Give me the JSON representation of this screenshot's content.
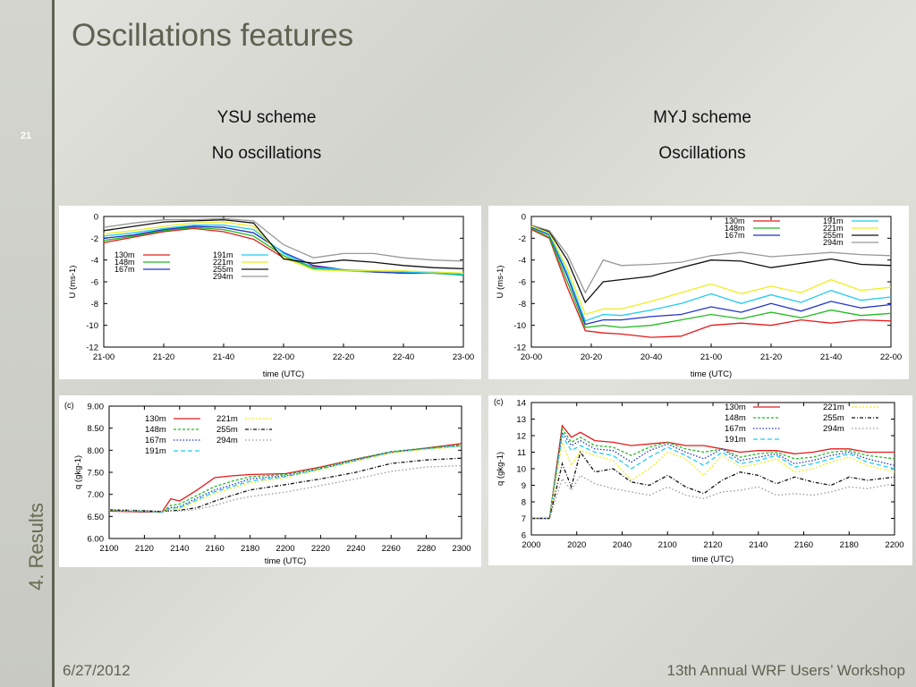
{
  "slide": {
    "title": "Oscillations features",
    "number": "21",
    "section": "4. Results",
    "date": "6/27/2012",
    "footer": "13th Annual WRF Users’ Workshop"
  },
  "columns": {
    "left": {
      "scheme": "YSU scheme",
      "note": "No oscillations"
    },
    "right": {
      "scheme": "MYJ scheme",
      "note": "Oscillations"
    }
  },
  "colors": {
    "130m": "#e41a1c",
    "148m": "#22bb22",
    "167m": "#2233cc",
    "191m": "#22ccee",
    "221m": "#eeee22",
    "255m": "#111111",
    "294m": "#999999"
  },
  "chart_data": [
    {
      "type": "line",
      "id": "ysu-u",
      "ylabel": "U (ms-1)",
      "xlabel": "time (UTC)",
      "xticks": [
        "21-00",
        "21-20",
        "21-40",
        "22-00",
        "22-20",
        "22-40",
        "23-00"
      ],
      "ylim": [
        -12,
        0
      ],
      "yticks": [
        0,
        -2,
        -4,
        -6,
        -8,
        -10,
        -12
      ],
      "x": [
        0,
        10,
        20,
        30,
        40,
        50,
        60,
        70,
        80,
        90,
        100,
        110,
        120
      ],
      "series": [
        {
          "name": "130m",
          "values": [
            -2.4,
            -1.9,
            -1.4,
            -1.1,
            -1.4,
            -2.1,
            -3.8,
            -4.6,
            -4.9,
            -5.1,
            -5.2,
            -5.2,
            -5.3
          ]
        },
        {
          "name": "148m",
          "values": [
            -2.2,
            -1.8,
            -1.3,
            -1.0,
            -1.2,
            -1.8,
            -3.6,
            -4.8,
            -5.0,
            -5.1,
            -5.2,
            -5.2,
            -5.4
          ]
        },
        {
          "name": "167m",
          "values": [
            -2.0,
            -1.7,
            -1.2,
            -0.9,
            -1.0,
            -1.5,
            -3.3,
            -4.5,
            -4.9,
            -5.1,
            -5.2,
            -5.2,
            -5.3
          ]
        },
        {
          "name": "191m",
          "values": [
            -1.8,
            -1.5,
            -1.1,
            -0.8,
            -0.8,
            -1.2,
            -3.4,
            -4.7,
            -4.9,
            -5.0,
            -5.1,
            -5.2,
            -5.3
          ]
        },
        {
          "name": "221m",
          "values": [
            -1.6,
            -1.3,
            -0.9,
            -0.6,
            -0.5,
            -0.9,
            -3.8,
            -4.9,
            -5.0,
            -5.0,
            -5.0,
            -5.1,
            -5.2
          ]
        },
        {
          "name": "255m",
          "values": [
            -1.3,
            -0.9,
            -0.5,
            -0.4,
            -0.3,
            -0.6,
            -3.9,
            -4.3,
            -4.0,
            -4.2,
            -4.5,
            -4.7,
            -4.8
          ]
        },
        {
          "name": "294m",
          "values": [
            -1.0,
            -0.6,
            -0.3,
            -0.3,
            -0.2,
            -0.4,
            -2.6,
            -3.8,
            -3.4,
            -3.4,
            -3.8,
            -4.0,
            -4.1
          ]
        }
      ]
    },
    {
      "type": "line",
      "id": "myj-u",
      "ylabel": "U (ms-1)",
      "xlabel": "time (UTC)",
      "xticks": [
        "20-00",
        "20-20",
        "20-40",
        "21-00",
        "21-20",
        "21-40",
        "22-00"
      ],
      "ylim": [
        -12,
        0
      ],
      "yticks": [
        0,
        -2,
        -4,
        -6,
        -8,
        -10,
        -12
      ],
      "x": [
        0,
        6,
        12,
        18,
        24,
        30,
        40,
        50,
        60,
        70,
        80,
        90,
        100,
        110,
        120
      ],
      "series": [
        {
          "name": "130m",
          "values": [
            -1.2,
            -2.0,
            -6.5,
            -10.5,
            -10.7,
            -10.8,
            -11.1,
            -11.0,
            -10.0,
            -9.8,
            -10.0,
            -9.5,
            -9.8,
            -9.5,
            -9.6
          ]
        },
        {
          "name": "148m",
          "values": [
            -1.1,
            -1.9,
            -6.0,
            -10.2,
            -10.0,
            -10.2,
            -10.0,
            -9.5,
            -9.0,
            -9.4,
            -8.8,
            -9.3,
            -8.6,
            -9.1,
            -8.9
          ]
        },
        {
          "name": "167m",
          "values": [
            -1.0,
            -1.7,
            -5.5,
            -9.9,
            -9.5,
            -9.5,
            -9.2,
            -9.0,
            -8.3,
            -8.8,
            -8.0,
            -8.7,
            -7.8,
            -8.4,
            -8.1
          ]
        },
        {
          "name": "191m",
          "values": [
            -0.9,
            -1.6,
            -5.2,
            -9.6,
            -9.0,
            -9.1,
            -8.6,
            -8.0,
            -7.1,
            -8.0,
            -7.2,
            -7.9,
            -6.8,
            -7.7,
            -7.4
          ]
        },
        {
          "name": "221m",
          "values": [
            -0.9,
            -1.5,
            -4.8,
            -9.0,
            -8.5,
            -8.5,
            -7.8,
            -7.0,
            -6.2,
            -7.1,
            -6.4,
            -7.0,
            -5.8,
            -6.8,
            -6.5
          ]
        },
        {
          "name": "255m",
          "values": [
            -0.8,
            -1.4,
            -4.0,
            -7.9,
            -6.0,
            -5.8,
            -5.5,
            -4.7,
            -4.0,
            -4.1,
            -4.7,
            -4.3,
            -3.9,
            -4.4,
            -4.5
          ]
        },
        {
          "name": "294m",
          "values": [
            -0.8,
            -1.3,
            -3.5,
            -7.0,
            -4.0,
            -4.5,
            -4.4,
            -4.2,
            -3.6,
            -3.3,
            -3.7,
            -3.5,
            -3.3,
            -3.5,
            -3.6
          ]
        }
      ]
    },
    {
      "type": "line",
      "id": "ysu-q",
      "panel_label": "(c)",
      "ylabel": "q (gkg-1)",
      "xlabel": "time (UTC)",
      "xticks": [
        "2100",
        "2120",
        "2140",
        "2160",
        "2180",
        "2200",
        "2220",
        "2240",
        "2260",
        "2280",
        "2300"
      ],
      "xlim": [
        2100,
        2300
      ],
      "ylim": [
        6.0,
        9.0
      ],
      "yticks": [
        "9.00",
        "8.50",
        "8.00",
        "7.50",
        "7.00",
        "6.50",
        "6.00"
      ],
      "x": [
        2100,
        2120,
        2130,
        2135,
        2140,
        2150,
        2160,
        2170,
        2180,
        2200,
        2220,
        2240,
        2260,
        2280,
        2300
      ],
      "series": [
        {
          "name": "130m",
          "values": [
            6.62,
            6.6,
            6.6,
            6.9,
            6.85,
            7.1,
            7.38,
            7.42,
            7.45,
            7.47,
            7.62,
            7.8,
            7.95,
            8.05,
            8.15
          ]
        },
        {
          "name": "148m",
          "values": [
            6.63,
            6.61,
            6.6,
            6.75,
            6.78,
            6.98,
            7.18,
            7.3,
            7.4,
            7.45,
            7.6,
            7.8,
            7.97,
            8.05,
            8.12
          ]
        },
        {
          "name": "167m",
          "values": [
            6.63,
            6.61,
            6.6,
            6.7,
            6.72,
            6.92,
            7.1,
            7.22,
            7.35,
            7.42,
            7.58,
            7.78,
            7.96,
            8.04,
            8.1
          ]
        },
        {
          "name": "191m",
          "values": [
            6.64,
            6.62,
            6.6,
            6.68,
            6.7,
            6.88,
            7.06,
            7.18,
            7.3,
            7.4,
            7.57,
            7.76,
            7.95,
            8.03,
            8.1
          ]
        },
        {
          "name": "221m",
          "values": [
            6.64,
            6.62,
            6.61,
            6.66,
            6.68,
            6.85,
            7.02,
            7.14,
            7.26,
            7.38,
            7.56,
            7.75,
            7.94,
            8.02,
            8.08
          ]
        },
        {
          "name": "255m",
          "values": [
            6.65,
            6.63,
            6.61,
            6.63,
            6.64,
            6.7,
            6.85,
            6.98,
            7.1,
            7.22,
            7.35,
            7.5,
            7.7,
            7.78,
            7.82
          ]
        },
        {
          "name": "294m",
          "values": [
            6.65,
            6.63,
            6.62,
            6.62,
            6.62,
            6.66,
            6.75,
            6.87,
            6.95,
            7.05,
            7.2,
            7.35,
            7.52,
            7.62,
            7.65
          ]
        }
      ]
    },
    {
      "type": "line",
      "id": "myj-q",
      "panel_label": "(c)",
      "ylabel": "q (gkg-1)",
      "xlabel": "time (UTC)",
      "xticks": [
        "2000",
        "2020",
        "2040",
        "2100",
        "2120",
        "2140",
        "2160",
        "2180",
        "2200"
      ],
      "xlim": [
        2000,
        2200
      ],
      "ylim": [
        6,
        14
      ],
      "yticks": [
        14,
        13,
        12,
        11,
        10,
        9,
        8,
        7,
        6
      ],
      "x": [
        2000,
        2010,
        2017,
        2022,
        2027,
        2035,
        2045,
        2055,
        2065,
        2075,
        2085,
        2095,
        2105,
        2115,
        2125,
        2135,
        2145,
        2155,
        2165,
        2175,
        2185,
        2200
      ],
      "series": [
        {
          "name": "130m",
          "values": [
            7,
            7,
            12.6,
            11.9,
            12.2,
            11.7,
            11.6,
            11.4,
            11.5,
            11.6,
            11.4,
            11.4,
            11.2,
            11.0,
            11.1,
            11.1,
            10.9,
            11.0,
            11.2,
            11.2,
            11.0,
            11.0
          ]
        },
        {
          "name": "148m",
          "values": [
            7,
            7,
            12.4,
            11.6,
            11.9,
            11.4,
            11.3,
            10.8,
            11.3,
            11.6,
            11.2,
            11.0,
            11.2,
            10.7,
            10.9,
            11.0,
            10.6,
            10.7,
            11.0,
            11.1,
            10.8,
            10.6
          ]
        },
        {
          "name": "167m",
          "values": [
            7,
            7,
            12.2,
            11.4,
            11.7,
            11.2,
            11.1,
            10.4,
            11.1,
            11.5,
            11.0,
            10.6,
            11.2,
            10.5,
            10.7,
            10.9,
            10.3,
            10.5,
            10.8,
            11.0,
            10.6,
            10.2
          ]
        },
        {
          "name": "191m",
          "values": [
            7,
            7,
            12.0,
            11.1,
            11.4,
            11.0,
            10.8,
            10.0,
            10.7,
            11.3,
            10.8,
            10.2,
            11.0,
            10.3,
            10.5,
            10.8,
            10.1,
            10.3,
            10.6,
            10.9,
            10.4,
            10.0
          ]
        },
        {
          "name": "221m",
          "values": [
            7,
            7,
            11.6,
            10.2,
            11.1,
            10.8,
            10.5,
            9.3,
            10.0,
            11.0,
            10.6,
            9.6,
            10.8,
            10.1,
            10.3,
            10.6,
            9.8,
            10.0,
            10.4,
            10.7,
            10.2,
            9.8
          ]
        },
        {
          "name": "255m",
          "values": [
            7,
            7,
            10.3,
            8.9,
            11.0,
            9.8,
            10.0,
            9.2,
            9.0,
            9.6,
            8.9,
            8.5,
            9.3,
            9.8,
            9.6,
            9.1,
            9.5,
            9.2,
            9.0,
            9.5,
            9.3,
            9.5
          ]
        },
        {
          "name": "294m",
          "values": [
            7,
            7,
            9.4,
            8.7,
            9.6,
            9.1,
            8.8,
            8.6,
            8.4,
            8.9,
            8.4,
            8.2,
            8.6,
            8.7,
            8.9,
            8.4,
            8.5,
            8.4,
            8.6,
            8.9,
            8.8,
            9.1
          ]
        }
      ]
    }
  ]
}
